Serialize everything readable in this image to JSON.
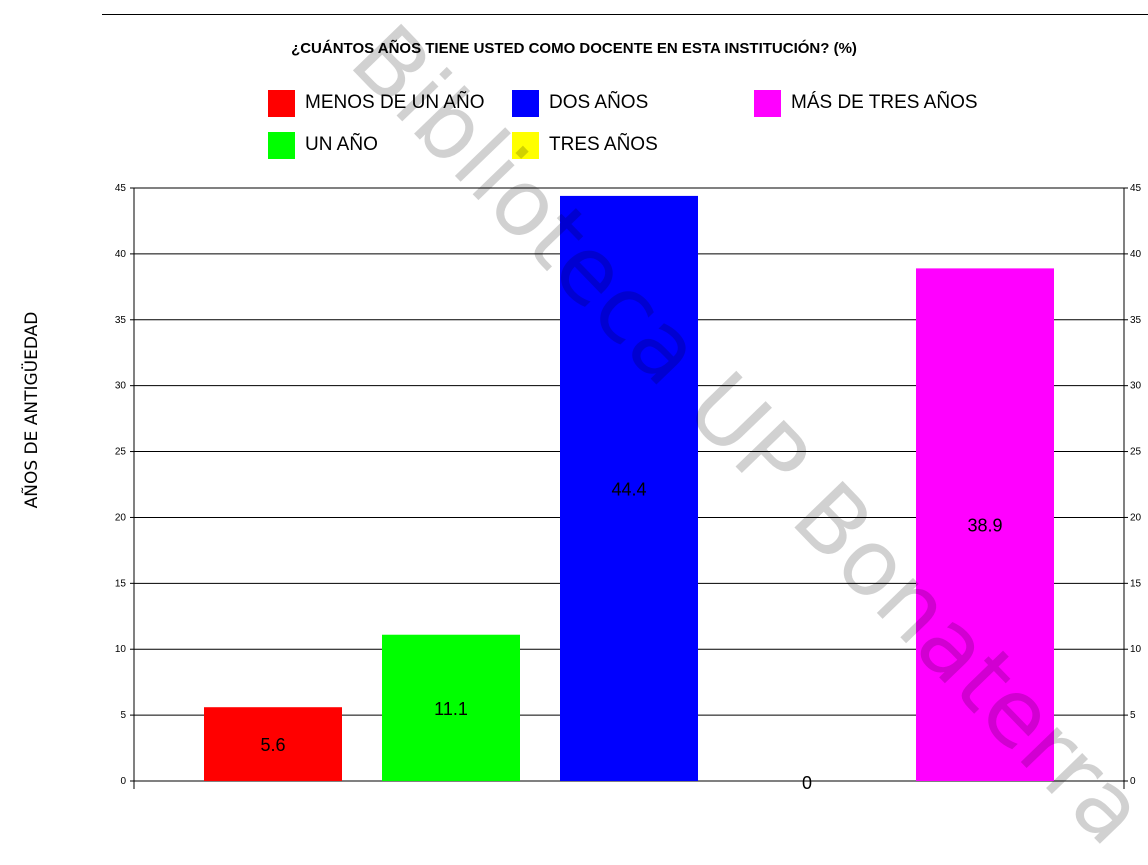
{
  "chart_data": {
    "type": "bar",
    "title": "¿CUÁNTOS AÑOS TIENE USTED COMO DOCENTE EN ESTA INSTITUCIÓN? (%)",
    "ylabel": "AÑOS DE ANTIGÜEDAD",
    "xlabel": "",
    "ylim": [
      0,
      45
    ],
    "yticks": [
      "0",
      "5",
      "10",
      "15",
      "20",
      "25",
      "30",
      "35",
      "40",
      "45"
    ],
    "grid": true,
    "legend_placement": "top",
    "series": [
      {
        "name": "MENOS DE UN AÑO",
        "value": 5.6,
        "label": "5.6",
        "color": "#ff0000"
      },
      {
        "name": "UN AÑO",
        "value": 11.1,
        "label": "11.1",
        "color": "#00ff00"
      },
      {
        "name": "DOS AÑOS",
        "value": 44.4,
        "label": "44.4",
        "color": "#0000ff"
      },
      {
        "name": "TRES AÑOS",
        "value": 0,
        "label": "0",
        "color": "#ffff00"
      },
      {
        "name": "MÁS DE TRES AÑOS",
        "value": 38.9,
        "label": "38.9",
        "color": "#ff00ff"
      }
    ]
  },
  "watermark": "Biblioteca UP Bonaterra"
}
